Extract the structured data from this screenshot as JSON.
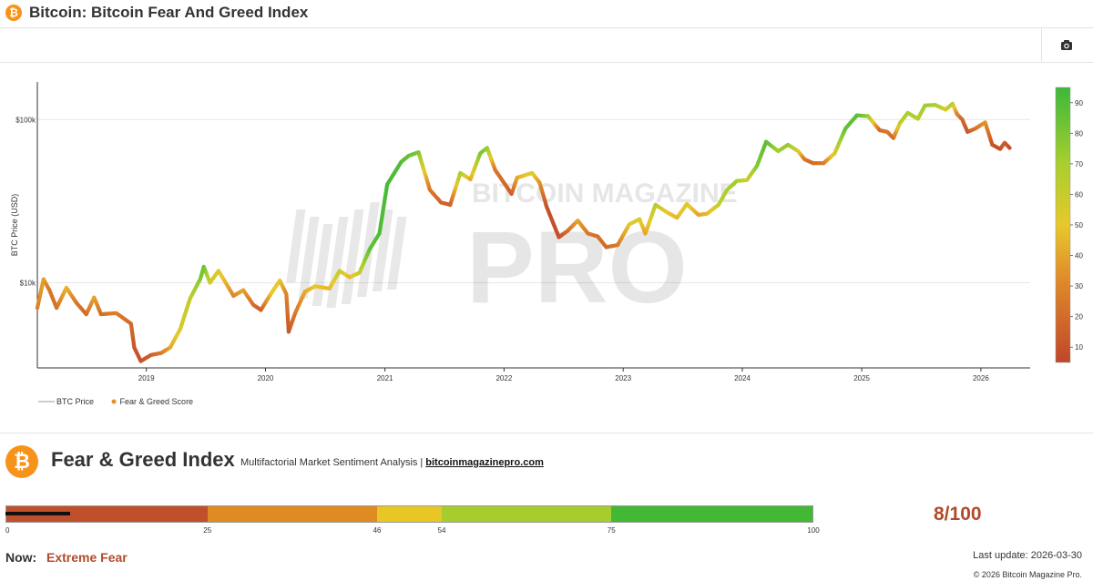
{
  "header": {
    "title": "Bitcoin: Bitcoin Fear And Greed Index",
    "icon": "bitcoin-icon"
  },
  "toolbar": {
    "camera_icon": "camera-icon"
  },
  "watermark": {
    "line1": "BITCOIN MAGAZINE",
    "line2": "PRO"
  },
  "chart_data": {
    "type": "scatter",
    "title": "",
    "ylabel": "BTC Price (USD)",
    "y_scale": "log",
    "y_ticks": [
      {
        "value": 10000,
        "label": "$10k"
      },
      {
        "value": 100000,
        "label": "$100k"
      }
    ],
    "x_ticks": [
      "2019",
      "2020",
      "2021",
      "2022",
      "2023",
      "2024",
      "2025",
      "2026"
    ],
    "xlim": [
      "2018-02-01",
      "2026-06-01"
    ],
    "ylim": [
      3000,
      170000
    ],
    "colorbar": {
      "min": 5,
      "max": 95,
      "ticks": [
        10,
        20,
        30,
        40,
        50,
        60,
        70,
        80,
        90
      ],
      "colors": [
        "#c0462a",
        "#e08a2a",
        "#e8c82c",
        "#a8cf2e",
        "#3cb83a"
      ]
    },
    "legend": {
      "placement": "bottom-left",
      "items": [
        {
          "name": "BTC Price",
          "color": "#bbbbbb",
          "kind": "line"
        },
        {
          "name": "Fear & Greed Score",
          "color": "#e0922a",
          "kind": "dot"
        }
      ]
    },
    "series": [
      {
        "name": "BTC Price",
        "points": [
          [
            "2018-02-01",
            7000,
            28
          ],
          [
            "2018-02-20",
            10500,
            40
          ],
          [
            "2018-03-10",
            9000,
            25
          ],
          [
            "2018-04-01",
            7000,
            22
          ],
          [
            "2018-05-01",
            9300,
            45
          ],
          [
            "2018-06-01",
            7500,
            25
          ],
          [
            "2018-07-01",
            6400,
            20
          ],
          [
            "2018-07-25",
            8100,
            40
          ],
          [
            "2018-08-15",
            6400,
            20
          ],
          [
            "2018-10-01",
            6500,
            28
          ],
          [
            "2018-11-15",
            5600,
            20
          ],
          [
            "2018-11-25",
            4000,
            12
          ],
          [
            "2018-12-15",
            3300,
            10
          ],
          [
            "2019-01-15",
            3600,
            15
          ],
          [
            "2019-02-15",
            3700,
            25
          ],
          [
            "2019-03-15",
            4000,
            40
          ],
          [
            "2019-04-15",
            5200,
            55
          ],
          [
            "2019-05-15",
            8000,
            62
          ],
          [
            "2019-06-15",
            10500,
            78
          ],
          [
            "2019-06-26",
            12500,
            85
          ],
          [
            "2019-07-15",
            10000,
            58
          ],
          [
            "2019-08-10",
            11800,
            55
          ],
          [
            "2019-09-01",
            10000,
            45
          ],
          [
            "2019-09-25",
            8300,
            30
          ],
          [
            "2019-10-25",
            9000,
            40
          ],
          [
            "2019-11-25",
            7300,
            22
          ],
          [
            "2019-12-18",
            6800,
            15
          ],
          [
            "2020-01-20",
            8700,
            50
          ],
          [
            "2020-02-14",
            10300,
            50
          ],
          [
            "2020-03-05",
            8500,
            30
          ],
          [
            "2020-03-12",
            5000,
            12
          ],
          [
            "2020-04-01",
            6500,
            25
          ],
          [
            "2020-05-01",
            8800,
            40
          ],
          [
            "2020-06-01",
            9500,
            50
          ],
          [
            "2020-07-15",
            9200,
            45
          ],
          [
            "2020-08-15",
            11800,
            60
          ],
          [
            "2020-09-15",
            10800,
            45
          ],
          [
            "2020-10-15",
            11500,
            60
          ],
          [
            "2020-11-15",
            16000,
            85
          ],
          [
            "2020-12-15",
            20000,
            90
          ],
          [
            "2021-01-08",
            40000,
            92
          ],
          [
            "2021-02-20",
            55000,
            90
          ],
          [
            "2021-03-15",
            60000,
            85
          ],
          [
            "2021-04-14",
            63000,
            80
          ],
          [
            "2021-05-19",
            37000,
            25
          ],
          [
            "2021-06-22",
            31000,
            18
          ],
          [
            "2021-07-20",
            30000,
            15
          ],
          [
            "2021-08-20",
            47000,
            70
          ],
          [
            "2021-09-20",
            43000,
            40
          ],
          [
            "2021-10-20",
            62000,
            80
          ],
          [
            "2021-11-10",
            67000,
            75
          ],
          [
            "2021-12-05",
            49000,
            25
          ],
          [
            "2022-01-24",
            35000,
            15
          ],
          [
            "2022-02-10",
            44000,
            40
          ],
          [
            "2022-03-28",
            47000,
            55
          ],
          [
            "2022-04-20",
            41000,
            35
          ],
          [
            "2022-05-12",
            29000,
            10
          ],
          [
            "2022-06-18",
            19000,
            8
          ],
          [
            "2022-07-15",
            20800,
            20
          ],
          [
            "2022-08-15",
            24000,
            40
          ],
          [
            "2022-09-15",
            20000,
            25
          ],
          [
            "2022-10-15",
            19200,
            22
          ],
          [
            "2022-11-10",
            16500,
            20
          ],
          [
            "2022-12-15",
            17000,
            25
          ],
          [
            "2023-01-20",
            22800,
            50
          ],
          [
            "2023-02-20",
            24500,
            55
          ],
          [
            "2023-03-10",
            20000,
            40
          ],
          [
            "2023-04-10",
            30000,
            65
          ],
          [
            "2023-05-15",
            27000,
            50
          ],
          [
            "2023-06-15",
            25000,
            45
          ],
          [
            "2023-07-15",
            30300,
            55
          ],
          [
            "2023-08-20",
            26000,
            40
          ],
          [
            "2023-09-15",
            26500,
            45
          ],
          [
            "2023-10-20",
            30000,
            60
          ],
          [
            "2023-11-15",
            37000,
            70
          ],
          [
            "2023-12-15",
            42000,
            72
          ],
          [
            "2024-01-15",
            42500,
            55
          ],
          [
            "2024-02-15",
            52000,
            78
          ],
          [
            "2024-03-14",
            73000,
            88
          ],
          [
            "2024-04-20",
            64000,
            70
          ],
          [
            "2024-05-20",
            70000,
            75
          ],
          [
            "2024-06-20",
            64000,
            55
          ],
          [
            "2024-07-10",
            57000,
            25
          ],
          [
            "2024-08-05",
            54000,
            20
          ],
          [
            "2024-09-06",
            54000,
            25
          ],
          [
            "2024-10-10",
            62000,
            55
          ],
          [
            "2024-11-12",
            88000,
            85
          ],
          [
            "2024-12-17",
            106000,
            88
          ],
          [
            "2025-01-20",
            105000,
            75
          ],
          [
            "2025-02-25",
            86000,
            20
          ],
          [
            "2025-03-20",
            84000,
            25
          ],
          [
            "2025-04-08",
            77000,
            20
          ],
          [
            "2025-04-28",
            95000,
            60
          ],
          [
            "2025-05-22",
            110000,
            70
          ],
          [
            "2025-06-22",
            101000,
            65
          ],
          [
            "2025-07-14",
            122000,
            72
          ],
          [
            "2025-08-14",
            123000,
            70
          ],
          [
            "2025-09-15",
            115000,
            55
          ],
          [
            "2025-10-06",
            125000,
            65
          ],
          [
            "2025-10-20",
            108000,
            30
          ],
          [
            "2025-11-05",
            100000,
            20
          ],
          [
            "2025-11-21",
            84000,
            12
          ],
          [
            "2025-12-15",
            88000,
            22
          ],
          [
            "2026-01-14",
            96000,
            35
          ],
          [
            "2026-02-05",
            70000,
            10
          ],
          [
            "2026-03-01",
            66000,
            8
          ],
          [
            "2026-03-15",
            72000,
            15
          ],
          [
            "2026-03-30",
            67000,
            8
          ]
        ]
      }
    ]
  },
  "fear_greed": {
    "title": "Fear & Greed Index",
    "subtitle": "Multifactorial Market Sentiment Analysis",
    "separator": "|",
    "link": "bitcoinmagazinepro.com",
    "score_text": "8/100",
    "score": 8,
    "segments": [
      {
        "from": 0,
        "to": 25,
        "color": "#c0502b"
      },
      {
        "from": 25,
        "to": 46,
        "color": "#e08a22"
      },
      {
        "from": 46,
        "to": 54,
        "color": "#e8c626"
      },
      {
        "from": 54,
        "to": 75,
        "color": "#a7cd2c"
      },
      {
        "from": 75,
        "to": 100,
        "color": "#43b834"
      }
    ],
    "tick_labels": [
      "0",
      "25",
      "46",
      "54",
      "75",
      "100"
    ],
    "now_label": "Now:",
    "now_value": "Extreme Fear",
    "last_update": "Last update: 2026-03-30",
    "copyright": "© 2026 Bitcoin Magazine Pro."
  }
}
